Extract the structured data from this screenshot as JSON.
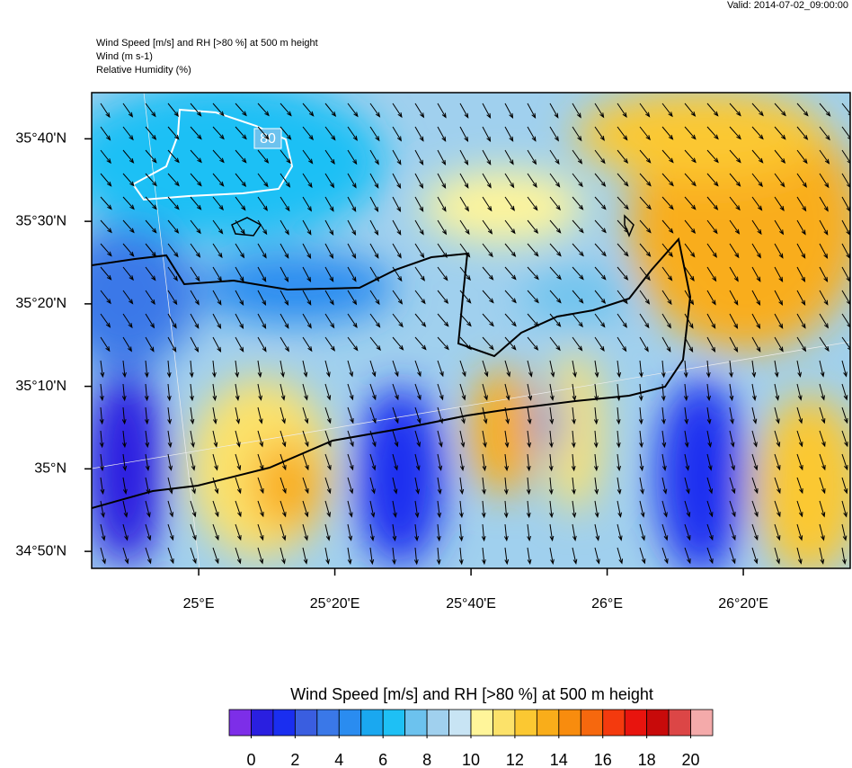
{
  "header": {
    "valid": "Valid: 2014-07-02_09:00:00",
    "title": "Wind Speed [m/s] and RH [>80 %] at 500 m height",
    "line2": "Wind   (m s-1)",
    "line3": "Relative Humidity   (%)"
  },
  "map": {
    "contour_label": "80",
    "xlim": [
      24.738,
      26.595
    ],
    "ylim": [
      34.799,
      35.76
    ],
    "xticks": [
      {
        "value": 25,
        "label": "25°E"
      },
      {
        "value": 25.3333,
        "label": "25°20'E"
      },
      {
        "value": 25.6667,
        "label": "25°40'E"
      },
      {
        "value": 26,
        "label": "26°E"
      },
      {
        "value": 26.3333,
        "label": "26°20'E"
      }
    ],
    "yticks": [
      {
        "value": 34.8333,
        "label": "34°50'N"
      },
      {
        "value": 35,
        "label": "35°N"
      },
      {
        "value": 35.1667,
        "label": "35°10'N"
      },
      {
        "value": 35.3333,
        "label": "35°20'N"
      },
      {
        "value": 35.5,
        "label": "35°30'N"
      },
      {
        "value": 35.6667,
        "label": "35°40'N"
      }
    ]
  },
  "colorbar": {
    "title": "Wind Speed [m/s] and RH [>80 %] at 500 m height",
    "range": [
      -1,
      21
    ],
    "colors": [
      "#7d2ee8",
      "#2a1fe0",
      "#1a2ef0",
      "#3a5ee0",
      "#3a78e8",
      "#2a8cf0",
      "#1aa8f0",
      "#1ec0f5",
      "#6cc2ee",
      "#a0d0ee",
      "#c8e4f4",
      "#fff59a",
      "#fce26a",
      "#fbc832",
      "#f9ad1a",
      "#f88c0e",
      "#f6680e",
      "#f43a0e",
      "#e8140e",
      "#c80a0a",
      "#dc4646",
      "#f4aaaa"
    ],
    "ticks": [
      0,
      2,
      4,
      6,
      8,
      10,
      12,
      14,
      16,
      18,
      20
    ]
  }
}
